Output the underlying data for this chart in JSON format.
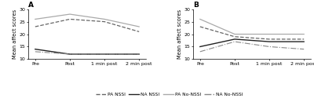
{
  "panel_A": {
    "title": "A",
    "x_labels": [
      "Pre",
      "Post",
      "1 min post",
      "2 min post"
    ],
    "series": [
      {
        "label": "PA NSSI",
        "y": [
          23,
          26,
          25,
          21
        ],
        "color": "#666666",
        "linestyle": "--",
        "linewidth": 0.9
      },
      {
        "label": "NA NSSI",
        "y": [
          14,
          12,
          12,
          12
        ],
        "color": "#222222",
        "linestyle": "-",
        "linewidth": 1.0
      },
      {
        "label": "PA No-NSSI",
        "y": [
          26,
          28,
          26,
          23
        ],
        "color": "#aaaaaa",
        "linestyle": "-",
        "linewidth": 0.9
      },
      {
        "label": "NA No-NSSI",
        "y": [
          13,
          12,
          12,
          12
        ],
        "color": "#888888",
        "linestyle": "-.",
        "linewidth": 0.8
      }
    ],
    "ylim": [
      10,
      30
    ],
    "yticks": [
      10,
      15,
      20,
      25,
      30
    ],
    "ylabel": "Mean affect scores"
  },
  "panel_B": {
    "title": "B",
    "x_labels": [
      "Pre",
      "Post",
      "1 min post",
      "2 min post"
    ],
    "series": [
      {
        "label": "PA NSSI",
        "y": [
          23,
          19,
          18,
          18
        ],
        "color": "#666666",
        "linestyle": "--",
        "linewidth": 0.9
      },
      {
        "label": "NA NSSI",
        "y": [
          15,
          18,
          17,
          17
        ],
        "color": "#222222",
        "linestyle": "-",
        "linewidth": 1.0
      },
      {
        "label": "PA No-NSSI",
        "y": [
          26,
          20,
          20,
          20
        ],
        "color": "#aaaaaa",
        "linestyle": "-",
        "linewidth": 0.9
      },
      {
        "label": "NA No-NSSI",
        "y": [
          13,
          17,
          15,
          14
        ],
        "color": "#888888",
        "linestyle": "-.",
        "linewidth": 0.8
      }
    ],
    "ylim": [
      10,
      30
    ],
    "yticks": [
      10,
      15,
      20,
      25,
      30
    ],
    "ylabel": "Mean affect scores"
  },
  "legend_entries": [
    {
      "label": "PA NSSI",
      "color": "#666666",
      "linestyle": "--"
    },
    {
      "label": "NA NSSI",
      "color": "#222222",
      "linestyle": "-"
    },
    {
      "label": "PA No-NSSI",
      "color": "#aaaaaa",
      "linestyle": "-"
    },
    {
      "label": "NA No-NSSI",
      "color": "#888888",
      "linestyle": "-."
    }
  ],
  "background_color": "#ffffff",
  "fontsize_title": 6.5,
  "fontsize_axis": 4.8,
  "fontsize_tick": 4.5,
  "fontsize_legend": 4.2
}
